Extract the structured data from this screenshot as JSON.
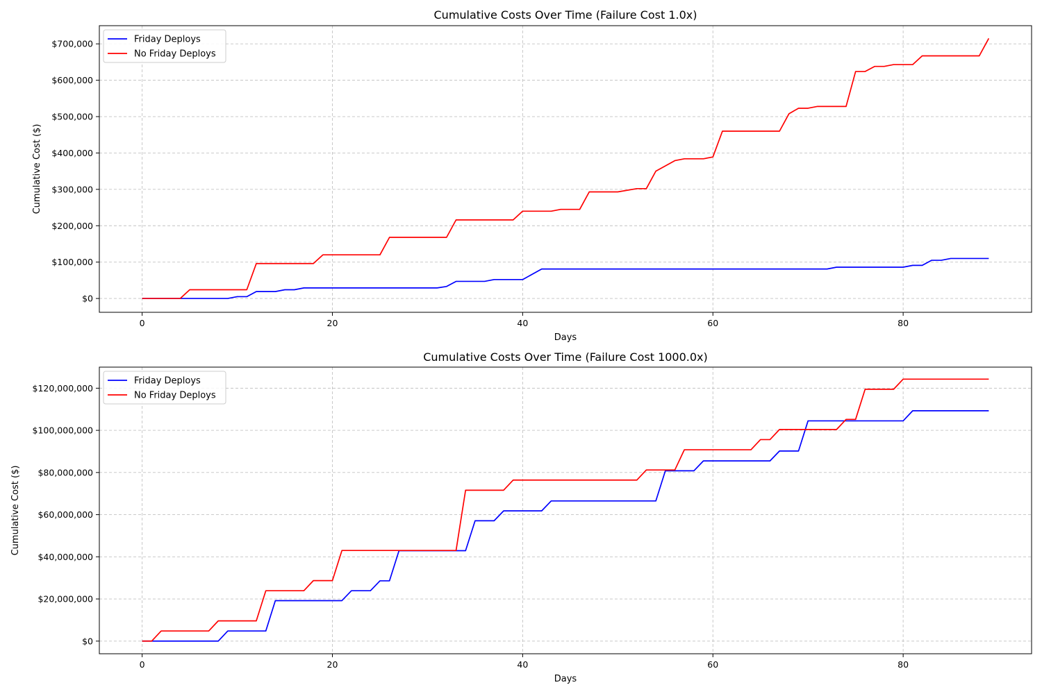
{
  "chart_data": [
    {
      "type": "line",
      "title": "Cumulative Costs Over Time (Failure Cost 1.0x)",
      "xlabel": "Days",
      "ylabel": "Cumulative Cost ($)",
      "xlim": [
        -4.5,
        93.5
      ],
      "ylim": [
        -38000,
        750000
      ],
      "xticks": [
        0,
        20,
        40,
        60,
        80
      ],
      "yticks": [
        0,
        100000,
        200000,
        300000,
        400000,
        500000,
        600000,
        700000
      ],
      "ytick_labels": [
        "$0",
        "$100,000",
        "$200,000",
        "$300,000",
        "$400,000",
        "$500,000",
        "$600,000",
        "$700,000"
      ],
      "grid": true,
      "legend_position": "top-left",
      "series": [
        {
          "name": "Friday Deploys",
          "color": "#0000ff",
          "points": [
            [
              0,
              0
            ],
            [
              9,
              0
            ],
            [
              10,
              5000
            ],
            [
              11,
              5000
            ],
            [
              12,
              19000
            ],
            [
              14,
              19000
            ],
            [
              15,
              24000
            ],
            [
              16,
              24000
            ],
            [
              17,
              29000
            ],
            [
              31,
              29000
            ],
            [
              32,
              33000
            ],
            [
              33,
              47000
            ],
            [
              36,
              47000
            ],
            [
              37,
              52000
            ],
            [
              40,
              52000
            ],
            [
              42,
              81000
            ],
            [
              72,
              81000
            ],
            [
              73,
              86000
            ],
            [
              80,
              86000
            ],
            [
              81,
              91000
            ],
            [
              82,
              91000
            ],
            [
              83,
              105000
            ],
            [
              84,
              105000
            ],
            [
              85,
              110000
            ],
            [
              89,
              110000
            ]
          ]
        },
        {
          "name": "No Friday Deploys",
          "color": "#ff0000",
          "points": [
            [
              0,
              0
            ],
            [
              4,
              0
            ],
            [
              5,
              24000
            ],
            [
              11,
              24000
            ],
            [
              12,
              96000
            ],
            [
              18,
              96000
            ],
            [
              19,
              120000
            ],
            [
              25,
              120000
            ],
            [
              26,
              168000
            ],
            [
              32,
              168000
            ],
            [
              33,
              216000
            ],
            [
              39,
              216000
            ],
            [
              40,
              240000
            ],
            [
              43,
              240000
            ],
            [
              44,
              245000
            ],
            [
              46,
              245000
            ],
            [
              47,
              293000
            ],
            [
              50,
              293000
            ],
            [
              52,
              302000
            ],
            [
              53,
              302000
            ],
            [
              54,
              350000
            ],
            [
              56,
              379000
            ],
            [
              57,
              384000
            ],
            [
              59,
              384000
            ],
            [
              60,
              389000
            ],
            [
              61,
              460000
            ],
            [
              67,
              460000
            ],
            [
              68,
              508000
            ],
            [
              69,
              523000
            ],
            [
              70,
              523000
            ],
            [
              71,
              528000
            ],
            [
              74,
              528000
            ],
            [
              75,
              624000
            ],
            [
              76,
              624000
            ],
            [
              77,
              638000
            ],
            [
              78,
              638000
            ],
            [
              79,
              643000
            ],
            [
              81,
              643000
            ],
            [
              82,
              667000
            ],
            [
              88,
              667000
            ],
            [
              89,
              715000
            ]
          ]
        }
      ]
    },
    {
      "type": "line",
      "title": "Cumulative Costs Over Time (Failure Cost 1000.0x)",
      "xlabel": "Days",
      "ylabel": "Cumulative Cost ($)",
      "xlim": [
        -4.5,
        93.5
      ],
      "ylim": [
        -6000000,
        130000000
      ],
      "xticks": [
        0,
        20,
        40,
        60,
        80
      ],
      "yticks": [
        0,
        20000000,
        40000000,
        60000000,
        80000000,
        100000000,
        120000000
      ],
      "ytick_labels": [
        "$0",
        "$20,000,000",
        "$40,000,000",
        "$60,000,000",
        "$80,000,000",
        "$100,000,000",
        "$120,000,000"
      ],
      "grid": true,
      "legend_position": "top-left",
      "series": [
        {
          "name": "Friday Deploys",
          "color": "#0000ff",
          "points": [
            [
              0,
              0
            ],
            [
              8,
              0
            ],
            [
              9,
              4800000
            ],
            [
              13,
              4800000
            ],
            [
              14,
              19200000
            ],
            [
              21,
              19200000
            ],
            [
              22,
              23900000
            ],
            [
              24,
              23900000
            ],
            [
              25,
              28600000
            ],
            [
              26,
              28600000
            ],
            [
              27,
              42900000
            ],
            [
              34,
              42900000
            ],
            [
              35,
              57100000
            ],
            [
              37,
              57100000
            ],
            [
              38,
              61800000
            ],
            [
              42,
              61800000
            ],
            [
              43,
              66500000
            ],
            [
              54,
              66500000
            ],
            [
              55,
              80800000
            ],
            [
              58,
              80800000
            ],
            [
              59,
              85500000
            ],
            [
              66,
              85500000
            ],
            [
              67,
              90200000
            ],
            [
              69,
              90200000
            ],
            [
              70,
              104500000
            ],
            [
              80,
              104500000
            ],
            [
              81,
              109300000
            ],
            [
              89,
              109300000
            ]
          ]
        },
        {
          "name": "No Friday Deploys",
          "color": "#ff0000",
          "points": [
            [
              0,
              0
            ],
            [
              1,
              0
            ],
            [
              2,
              4800000
            ],
            [
              7,
              4800000
            ],
            [
              8,
              9600000
            ],
            [
              12,
              9600000
            ],
            [
              13,
              23900000
            ],
            [
              17,
              23900000
            ],
            [
              18,
              28700000
            ],
            [
              20,
              28700000
            ],
            [
              21,
              43000000
            ],
            [
              33,
              43000000
            ],
            [
              34,
              71600000
            ],
            [
              38,
              71600000
            ],
            [
              39,
              76400000
            ],
            [
              52,
              76400000
            ],
            [
              53,
              81200000
            ],
            [
              56,
              81200000
            ],
            [
              57,
              90800000
            ],
            [
              64,
              90800000
            ],
            [
              65,
              95600000
            ],
            [
              66,
              95600000
            ],
            [
              67,
              100400000
            ],
            [
              73,
              100400000
            ],
            [
              74,
              105200000
            ],
            [
              75,
              105200000
            ],
            [
              76,
              119500000
            ],
            [
              79,
              119500000
            ],
            [
              80,
              124300000
            ],
            [
              89,
              124300000
            ]
          ]
        }
      ]
    }
  ]
}
